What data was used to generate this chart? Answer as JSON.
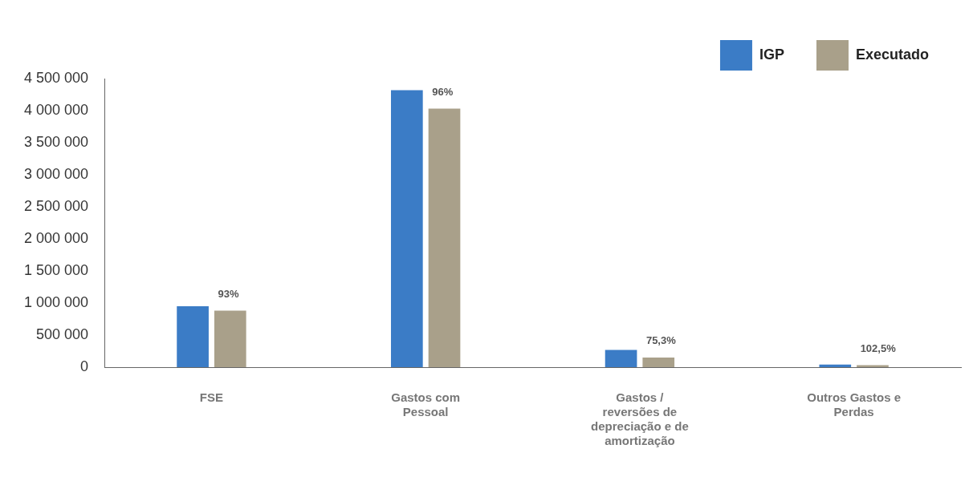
{
  "chart_data": {
    "type": "bar",
    "categories": [
      "FSE",
      "Gastos com Pessoal",
      "Gastos / reversões de depreciação e de amortização",
      "Outros Gastos e Perdas"
    ],
    "series": [
      {
        "name": "IGP",
        "color": "#3b7cc6",
        "values": [
          950000,
          4320000,
          270000,
          40000
        ]
      },
      {
        "name": "Executado",
        "color": "#a9a08a",
        "values": [
          880000,
          4030000,
          150000,
          30000
        ]
      }
    ],
    "annotations": [
      {
        "text": "93%",
        "x": "FSE",
        "y": 880000
      },
      {
        "text": "96%",
        "x": "Gastos com Pessoal",
        "y": 4030000
      },
      {
        "text": "75,3%",
        "x": "Gastos / reversões de depreciação e de amortização",
        "y": 150000
      },
      {
        "text": "102,5%",
        "x": "Outros Gastos e Perdas",
        "y": 30000
      }
    ],
    "ylim": [
      0,
      4500000
    ],
    "yticks": [
      {
        "value": 0,
        "label": "0"
      },
      {
        "value": 500000,
        "label": "500 000"
      },
      {
        "value": 1000000,
        "label": "1 000 000"
      },
      {
        "value": 1500000,
        "label": "1 500 000"
      },
      {
        "value": 2000000,
        "label": "2 000 000"
      },
      {
        "value": 2500000,
        "label": "2 500 000"
      },
      {
        "value": 3000000,
        "label": "3 000 000"
      },
      {
        "value": 3500000,
        "label": "3 500 000"
      },
      {
        "value": 4000000,
        "label": "4 000 000"
      },
      {
        "value": 4500000,
        "label": "4 500 000"
      }
    ],
    "grid": false,
    "legend": "top right"
  }
}
